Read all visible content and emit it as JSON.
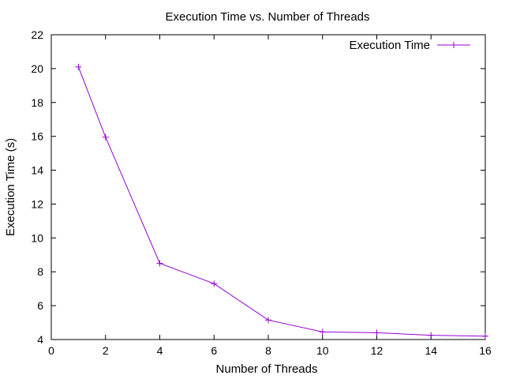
{
  "chart_data": {
    "type": "line",
    "title": "Execution Time vs. Number of Threads",
    "xlabel": "Number of Threads",
    "ylabel": "Execution Time (s)",
    "xlim": [
      0,
      16
    ],
    "ylim": [
      4,
      22
    ],
    "xticks": [
      0,
      2,
      4,
      6,
      8,
      10,
      12,
      14,
      16
    ],
    "yticks": [
      4,
      6,
      8,
      10,
      12,
      14,
      16,
      18,
      20,
      22
    ],
    "grid": false,
    "legend": "top-right",
    "series": [
      {
        "name": "Execution Time",
        "color": "#9400d3",
        "marker": "plus",
        "x": [
          1,
          2,
          4,
          6,
          8,
          10,
          12,
          14,
          16
        ],
        "y": [
          20.1,
          15.95,
          8.5,
          7.3,
          5.15,
          4.45,
          4.4,
          4.25,
          4.2
        ]
      }
    ]
  }
}
